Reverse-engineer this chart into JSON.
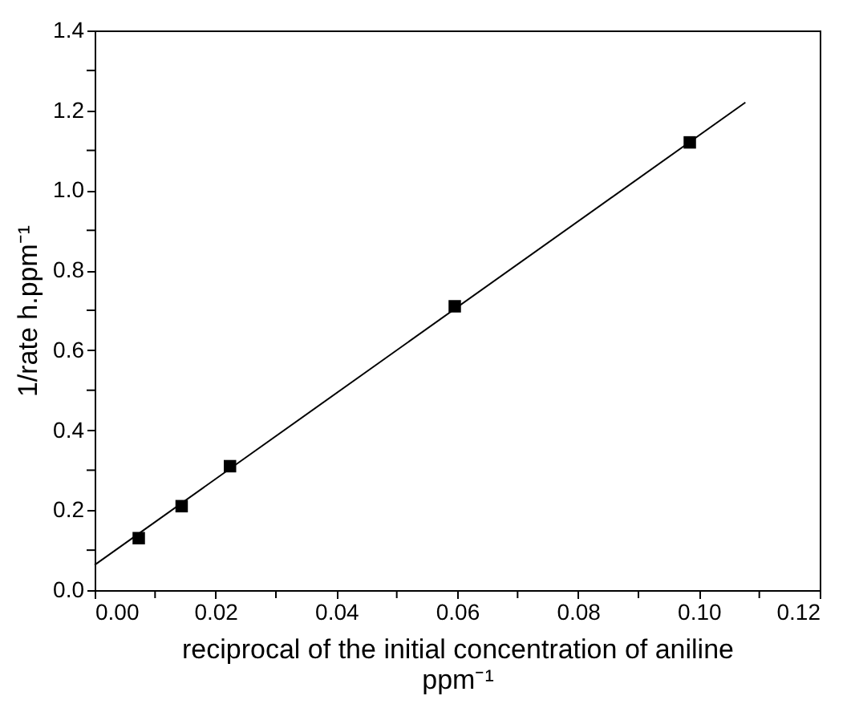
{
  "chart_data": {
    "type": "scatter",
    "xlabel": "reciprocal of the initial    concentration of    aniline\nppm⁻¹",
    "ylabel": "1/rate    h.ppm⁻¹",
    "grid": false,
    "xlim": [
      0,
      0.12
    ],
    "ylim": [
      0,
      1.4
    ],
    "xticks": [
      {
        "value": 0,
        "label": "0.00"
      },
      {
        "value": 0.01,
        "label": null
      },
      {
        "value": 0.02,
        "label": "0.02"
      },
      {
        "value": 0.03,
        "label": null
      },
      {
        "value": 0.04,
        "label": "0.04"
      },
      {
        "value": 0.05,
        "label": null
      },
      {
        "value": 0.06,
        "label": "0.06"
      },
      {
        "value": 0.07,
        "label": null
      },
      {
        "value": 0.08,
        "label": "0.08"
      },
      {
        "value": 0.09,
        "label": null
      },
      {
        "value": 0.1,
        "label": "0.10"
      },
      {
        "value": 0.11,
        "label": null
      },
      {
        "value": 0.12,
        "label": "0.12"
      }
    ],
    "yticks": [
      {
        "value": 0,
        "label": "0.0"
      },
      {
        "value": 0.1,
        "label": null
      },
      {
        "value": 0.2,
        "label": "0.2"
      },
      {
        "value": 0.3,
        "label": null
      },
      {
        "value": 0.4,
        "label": "0.4"
      },
      {
        "value": 0.5,
        "label": null
      },
      {
        "value": 0.6,
        "label": "0.6"
      },
      {
        "value": 0.7,
        "label": null
      },
      {
        "value": 0.8,
        "label": "0.8"
      },
      {
        "value": 0.9,
        "label": null
      },
      {
        "value": 1.0,
        "label": "1.0"
      },
      {
        "value": 1.1,
        "label": null
      },
      {
        "value": 1.2,
        "label": "1.2"
      },
      {
        "value": 1.3,
        "label": null
      },
      {
        "value": 1.4,
        "label": "1.4"
      }
    ],
    "series": [
      {
        "type": "scatter",
        "color": "#000000",
        "marker": "square",
        "x": [
          0.0073,
          0.0144,
          0.0224,
          0.0596,
          0.0985
        ],
        "values": [
          0.13,
          0.21,
          0.31,
          0.71,
          1.12
        ]
      },
      {
        "type": "line",
        "color": "#000000",
        "line_style": "solid",
        "marker": "none",
        "x": [
          0,
          0.1077
        ],
        "values": [
          0.063,
          1.22
        ]
      }
    ]
  }
}
